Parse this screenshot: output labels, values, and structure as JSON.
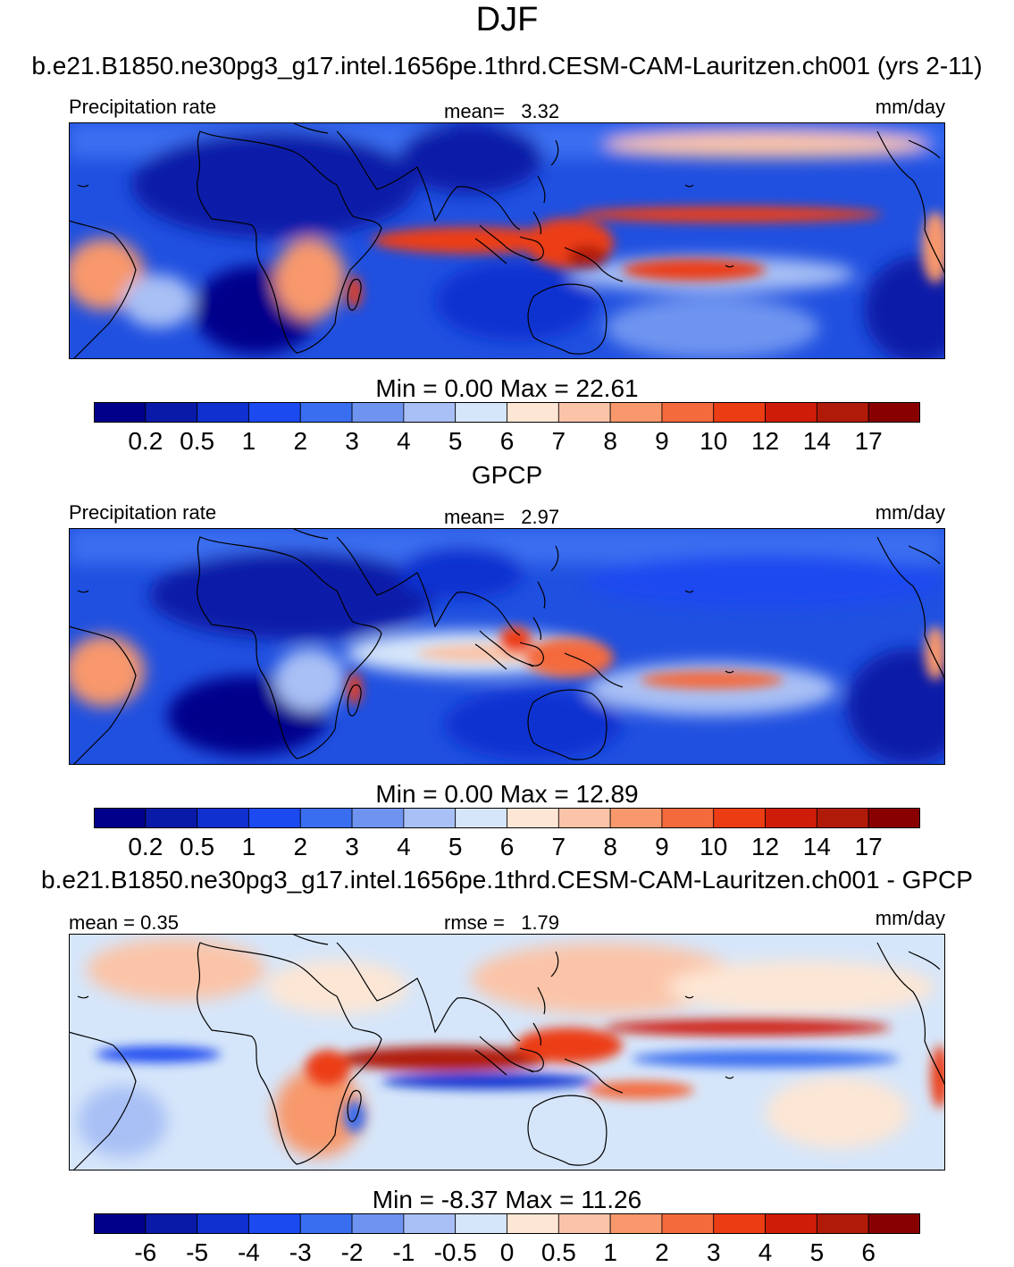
{
  "season": "DJF",
  "units": "mm/day",
  "abs_levels": [
    "0.2",
    "0.5",
    "1",
    "2",
    "3",
    "4",
    "5",
    "6",
    "7",
    "8",
    "9",
    "10",
    "12",
    "14",
    "17"
  ],
  "diff_levels": [
    "-6",
    "-5",
    "-4",
    "-3",
    "-2",
    "-1",
    "-0.5",
    "0",
    "0.5",
    "1",
    "2",
    "3",
    "4",
    "5",
    "6"
  ],
  "colors": [
    "#00008b",
    "#0a1aa8",
    "#1030d0",
    "#1a4af0",
    "#3a6ef0",
    "#6e94f0",
    "#a8c0f5",
    "#d6e6fa",
    "#fde6d4",
    "#fbc4a8",
    "#f8986c",
    "#f46a3c",
    "#ec3c14",
    "#cf1c08",
    "#b01a08",
    "#880000"
  ],
  "panels": [
    {
      "title": "b.e21.B1850.ne30pg3_g17.intel.1656pe.1thrd.CESM-CAM-Lauritzen.ch001 (yrs 2-11)",
      "left_label": "Precipitation rate",
      "center_label": "mean=",
      "center_value": "3.32",
      "right_label": "mm/day",
      "minmax": "Min =   0.00 Max =  22.61"
    },
    {
      "title": "GPCP",
      "left_label": "Precipitation rate",
      "center_label": "mean=",
      "center_value": "2.97",
      "right_label": "mm/day",
      "minmax": "Min =   0.00 Max =  12.89"
    },
    {
      "title": "b.e21.B1850.ne30pg3_g17.intel.1656pe.1thrd.CESM-CAM-Lauritzen.ch001 - GPCP",
      "left_label": "mean =   0.35",
      "center_label": "rmse =",
      "center_value": "1.79",
      "right_label": "mm/day",
      "minmax": "Min =  -8.37 Max =  11.26"
    }
  ],
  "chart_data": [
    {
      "type": "heatmap",
      "title": "b.e21.B1850.ne30pg3_g17.intel.1656pe.1thrd.CESM-CAM-Lauritzen.ch001 (yrs 2-11)",
      "variable": "Precipitation rate",
      "units": "mm/day",
      "mean": 3.32,
      "min": 0.0,
      "max": 22.61,
      "contour_levels": [
        0.2,
        0.5,
        1,
        2,
        3,
        4,
        5,
        6,
        7,
        8,
        9,
        10,
        12,
        14,
        17
      ]
    },
    {
      "type": "heatmap",
      "title": "GPCP",
      "variable": "Precipitation rate",
      "units": "mm/day",
      "mean": 2.97,
      "min": 0.0,
      "max": 12.89,
      "contour_levels": [
        0.2,
        0.5,
        1,
        2,
        3,
        4,
        5,
        6,
        7,
        8,
        9,
        10,
        12,
        14,
        17
      ]
    },
    {
      "type": "heatmap",
      "title": "b.e21.B1850.ne30pg3_g17.intel.1656pe.1thrd.CESM-CAM-Lauritzen.ch001 - GPCP",
      "units": "mm/day",
      "mean": 0.35,
      "rmse": 1.79,
      "min": -8.37,
      "max": 11.26,
      "contour_levels": [
        -6,
        -5,
        -4,
        -3,
        -2,
        -1,
        -0.5,
        0,
        0.5,
        1,
        2,
        3,
        4,
        5,
        6
      ]
    }
  ]
}
